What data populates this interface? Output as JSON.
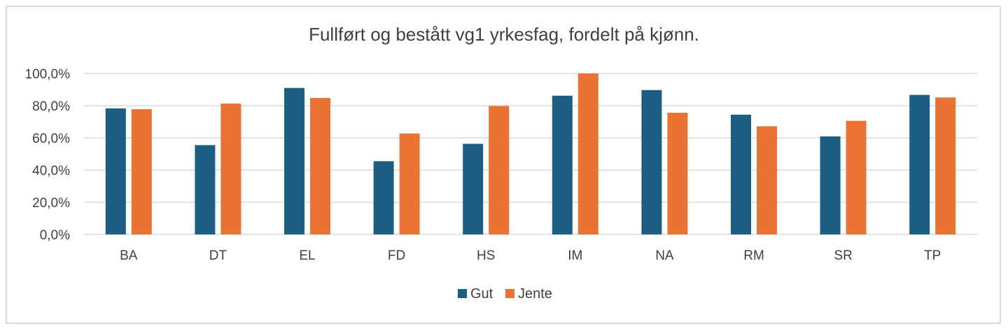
{
  "chart_data": {
    "type": "bar",
    "title": "Fullført og bestått vg1 yrkesfag, fordelt på kjønn.",
    "categories": [
      "BA",
      "DT",
      "EL",
      "FD",
      "HS",
      "IM",
      "NA",
      "RM",
      "SR",
      "TP"
    ],
    "series": [
      {
        "name": "Gut",
        "color": "#1b5e82",
        "values": [
          78.3,
          55.5,
          91.0,
          45.5,
          56.3,
          86.2,
          89.7,
          74.4,
          60.9,
          86.7
        ]
      },
      {
        "name": "Jente",
        "color": "#ea7334",
        "values": [
          77.8,
          81.3,
          84.8,
          62.7,
          79.8,
          100.0,
          75.6,
          67.2,
          70.6,
          85.1
        ]
      }
    ],
    "y_ticks": [
      "0,0%",
      "20,0%",
      "40,0%",
      "60,0%",
      "80,0%",
      "100,0%"
    ],
    "ylim": [
      0,
      100
    ],
    "xlabel": "",
    "ylabel": "",
    "grid": true,
    "legend_position": "bottom"
  }
}
